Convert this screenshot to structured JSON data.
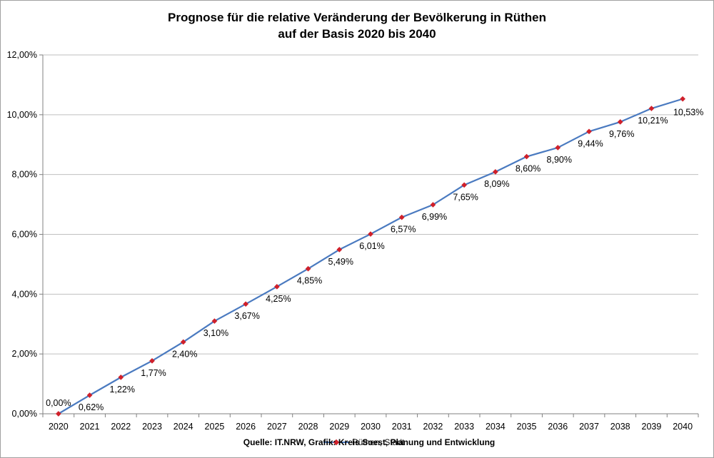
{
  "chart_data": {
    "type": "line",
    "title": "Prognose für die relative Veränderung der Bevölkerung in Rüthen",
    "subtitle": "auf der Basis 2020 bis 2040",
    "x": [
      "2020",
      "2021",
      "2022",
      "2023",
      "2024",
      "2025",
      "2026",
      "2027",
      "2028",
      "2029",
      "2030",
      "2031",
      "2032",
      "2033",
      "2034",
      "2035",
      "2036",
      "2037",
      "2038",
      "2039",
      "2040"
    ],
    "series": [
      {
        "name": "Rüthen, Stadt",
        "values": [
          0.0,
          0.62,
          1.22,
          1.77,
          2.4,
          3.1,
          3.67,
          4.25,
          4.85,
          5.49,
          6.01,
          6.57,
          6.99,
          7.65,
          8.09,
          8.6,
          8.9,
          9.44,
          9.76,
          10.21,
          10.53
        ],
        "labels": [
          "0,00%",
          "0,62%",
          "1,22%",
          "1,77%",
          "2,40%",
          "3,10%",
          "3,67%",
          "4,25%",
          "4,85%",
          "5,49%",
          "6,01%",
          "6,57%",
          "6,99%",
          "7,65%",
          "8,09%",
          "8,60%",
          "8,90%",
          "9,44%",
          "9,76%",
          "10,21%",
          "10,53%"
        ],
        "line_color": "#4a7ac0",
        "marker_color": "#d0202a"
      }
    ],
    "ylim": [
      0,
      12
    ],
    "yticks": [
      0,
      2,
      4,
      6,
      8,
      10,
      12
    ],
    "ytick_labels": [
      "0,00%",
      "2,00%",
      "4,00%",
      "6,00%",
      "8,00%",
      "10,00%",
      "12,00%"
    ],
    "grid": true,
    "grid_color": "#bfbfbf",
    "legend_position": "bottom",
    "source_note": "Quelle: IT.NRW, Grafik: Kreis Soest, Planung und Entwicklung"
  }
}
